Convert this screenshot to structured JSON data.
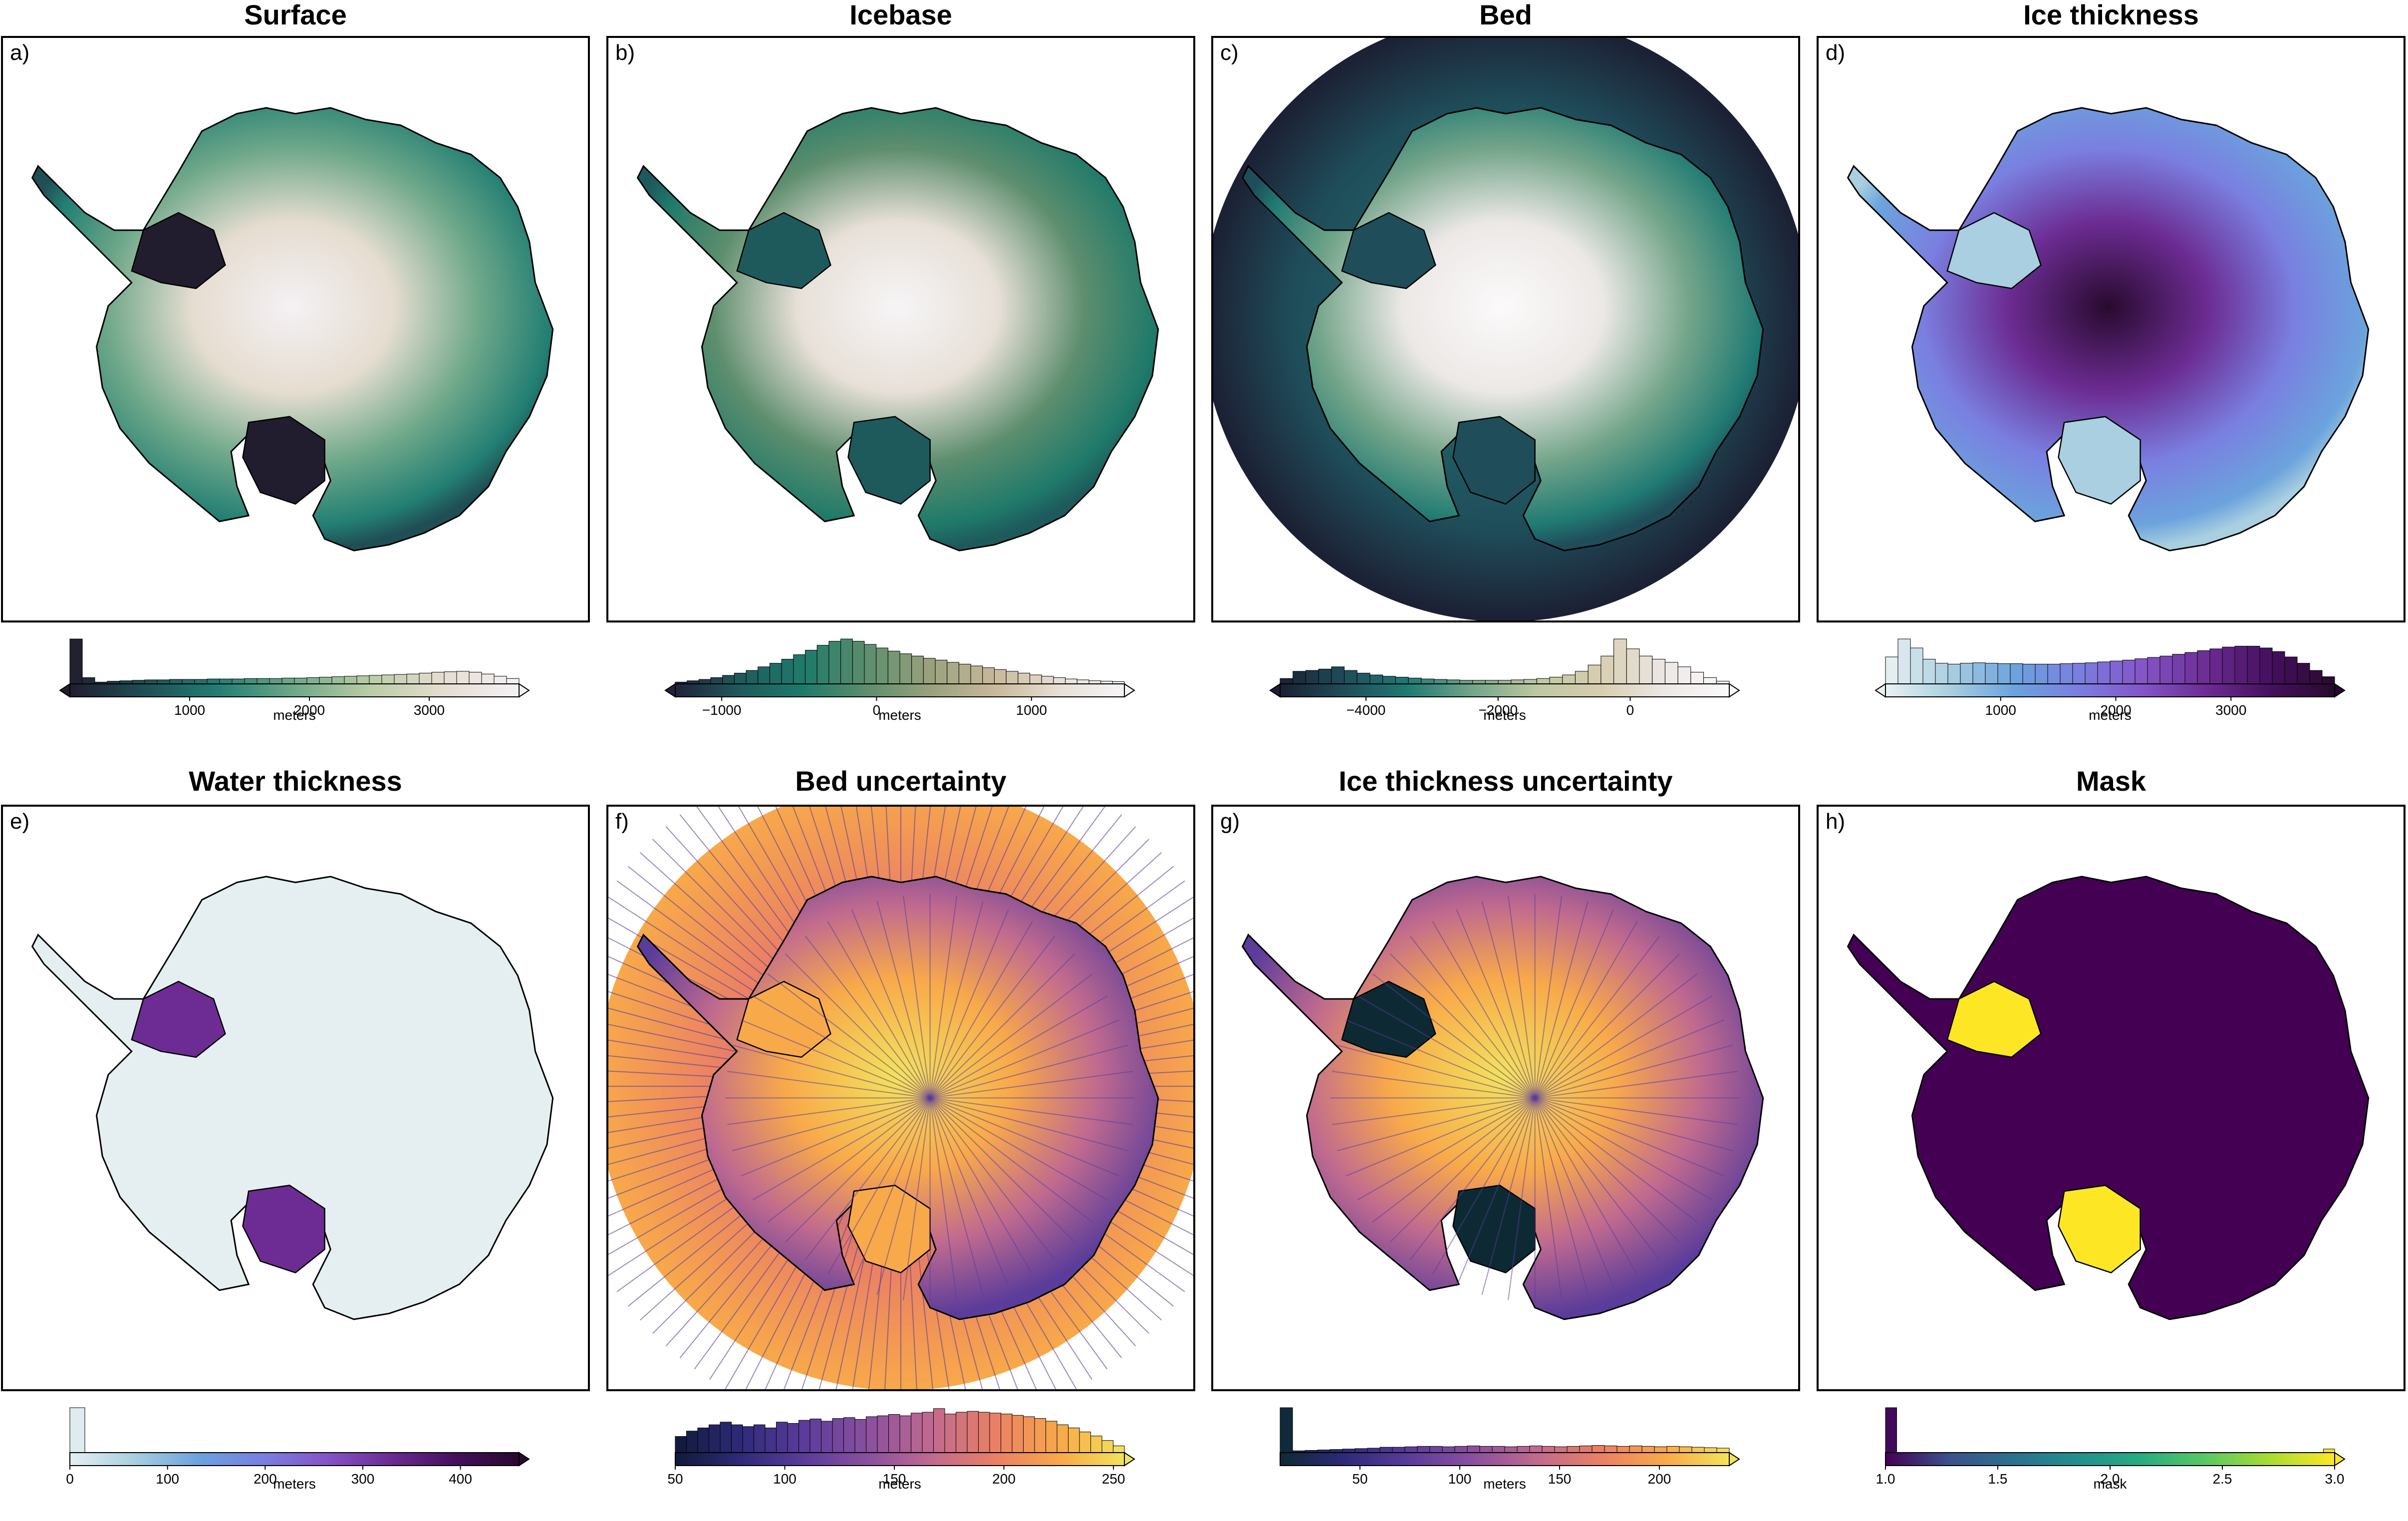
{
  "figure": {
    "panels": [
      {
        "letter": "a)",
        "title": "Surface",
        "shape": "ice",
        "hole": "none",
        "cmap": [
          "#211d2e",
          "#1f4f55",
          "#237f73",
          "#6fa88a",
          "#b8cda4",
          "#e6ddd0",
          "#f4f1f5"
        ],
        "cbar_label": "meters",
        "extend": "both",
        "range": [
          0,
          3750
        ],
        "ticks": [
          1000,
          2000,
          3000
        ],
        "tick_labels": [
          "1000",
          "2000",
          "3000"
        ],
        "histogram": [
          1.0,
          0.14,
          0.04,
          0.06,
          0.07,
          0.08,
          0.09,
          0.09,
          0.1,
          0.1,
          0.1,
          0.11,
          0.11,
          0.11,
          0.12,
          0.12,
          0.12,
          0.13,
          0.13,
          0.14,
          0.15,
          0.16,
          0.17,
          0.18,
          0.19,
          0.2,
          0.21,
          0.22,
          0.24,
          0.26,
          0.27,
          0.28,
          0.26,
          0.22,
          0.17,
          0.12
        ]
      },
      {
        "letter": "b)",
        "title": "Icebase",
        "shape": "ice",
        "hole": "none",
        "cmap": [
          "#22213a",
          "#1e5a5c",
          "#1f7a6a",
          "#5e8e6e",
          "#9aa27d",
          "#c9b99a",
          "#e8e0d8",
          "#f6f5f6"
        ],
        "cbar_label": "meters",
        "extend": "both",
        "range": [
          -1300,
          1600
        ],
        "ticks": [
          -1000,
          0,
          1000
        ],
        "tick_labels": [
          "−1000",
          "0",
          "1000"
        ],
        "histogram": [
          0.04,
          0.07,
          0.1,
          0.14,
          0.19,
          0.24,
          0.3,
          0.38,
          0.46,
          0.55,
          0.65,
          0.75,
          0.86,
          0.95,
          1.0,
          0.95,
          0.88,
          0.8,
          0.73,
          0.67,
          0.62,
          0.57,
          0.53,
          0.48,
          0.44,
          0.4,
          0.36,
          0.32,
          0.28,
          0.24,
          0.2,
          0.17,
          0.14,
          0.11,
          0.09,
          0.07,
          0.06,
          0.05
        ]
      },
      {
        "letter": "c)",
        "title": "Bed",
        "shape": "disk",
        "hole": "none",
        "cmap": [
          "#1c1f33",
          "#1f4d5a",
          "#207a73",
          "#74a58a",
          "#bdc8a0",
          "#d8cdb0",
          "#ece8e6",
          "#fbfafa"
        ],
        "cbar_label": "meters",
        "extend": "both",
        "range": [
          -5300,
          1500
        ],
        "ticks": [
          -4000,
          -2000,
          0
        ],
        "tick_labels": [
          "−4000",
          "−2000",
          "0"
        ],
        "histogram": [
          0.12,
          0.28,
          0.3,
          0.33,
          0.38,
          0.3,
          0.24,
          0.2,
          0.17,
          0.15,
          0.13,
          0.11,
          0.1,
          0.09,
          0.08,
          0.08,
          0.08,
          0.08,
          0.09,
          0.1,
          0.12,
          0.15,
          0.2,
          0.28,
          0.42,
          0.62,
          1.0,
          0.78,
          0.62,
          0.55,
          0.48,
          0.38,
          0.26,
          0.14,
          0.06
        ]
      },
      {
        "letter": "d)",
        "title": "Ice thickness",
        "shape": "ice",
        "hole": "none",
        "cmap": [
          "#eaf1f2",
          "#a9cfe0",
          "#6ba3dd",
          "#7a7fe0",
          "#8455c8",
          "#6c2c93",
          "#45105e",
          "#280a2e"
        ],
        "cbar_label": "meters",
        "extend": "both",
        "range": [
          0,
          3900
        ],
        "ticks": [
          1000,
          2000,
          3000
        ],
        "tick_labels": [
          "1000",
          "2000",
          "3000"
        ],
        "histogram": [
          0.6,
          1.0,
          0.8,
          0.55,
          0.46,
          0.44,
          0.46,
          0.47,
          0.46,
          0.45,
          0.45,
          0.44,
          0.44,
          0.44,
          0.45,
          0.46,
          0.47,
          0.49,
          0.51,
          0.53,
          0.56,
          0.59,
          0.62,
          0.66,
          0.7,
          0.74,
          0.78,
          0.82,
          0.84,
          0.84,
          0.8,
          0.72,
          0.6,
          0.46,
          0.3,
          0.16
        ]
      },
      {
        "letter": "e)",
        "title": "Water thickness",
        "shape": "ice",
        "hole": "none",
        "cmap": [
          "#e5eff1",
          "#a9cfe0",
          "#6ba3dd",
          "#7a7fe0",
          "#8455c8",
          "#6c2c93",
          "#45105e",
          "#280a2e"
        ],
        "cbar_label": "meters",
        "extend": "max",
        "range": [
          0,
          460
        ],
        "ticks": [
          0,
          100,
          200,
          300,
          400
        ],
        "tick_labels": [
          "0",
          "100",
          "200",
          "300",
          "400"
        ],
        "histogram": [
          1.0,
          0.005,
          0.004,
          0.004,
          0.003,
          0.003,
          0.003,
          0.002,
          0.002,
          0.002,
          0.002,
          0.002,
          0.002,
          0.001,
          0.001,
          0.001,
          0.001,
          0.001,
          0.001,
          0.001,
          0.001,
          0.001,
          0.001,
          0.001,
          0.001,
          0.001,
          0.001,
          0.001,
          0.001,
          0.001
        ]
      },
      {
        "letter": "f)",
        "title": "Bed uncertainty",
        "shape": "disk",
        "hole": "none",
        "cmap": [
          "#0f1a3a",
          "#2e2a78",
          "#5a3c9a",
          "#8a4f9f",
          "#c06a8f",
          "#ea8064",
          "#f8a94a",
          "#f3e35a"
        ],
        "cbar_label": "meters",
        "extend": "max",
        "range": [
          50,
          255
        ],
        "ticks": [
          50,
          100,
          150,
          200,
          250
        ],
        "tick_labels": [
          "50",
          "100",
          "150",
          "200",
          "250"
        ],
        "histogram": [
          0.36,
          0.48,
          0.55,
          0.62,
          0.68,
          0.62,
          0.58,
          0.62,
          0.55,
          0.68,
          0.65,
          0.72,
          0.75,
          0.7,
          0.76,
          0.78,
          0.74,
          0.8,
          0.82,
          0.85,
          0.82,
          0.88,
          0.9,
          0.98,
          0.86,
          0.9,
          0.92,
          0.9,
          0.88,
          0.86,
          0.83,
          0.8,
          0.76,
          0.7,
          0.62,
          0.55,
          0.46,
          0.37,
          0.27,
          0.15
        ]
      },
      {
        "letter": "g)",
        "title": "Ice thickness uncertainty",
        "shape": "ice",
        "hole": "none",
        "cmap": [
          "#0d2a34",
          "#2e2a78",
          "#5a3c9a",
          "#8a4f9f",
          "#c06a8f",
          "#ea8064",
          "#f8a94a",
          "#f3e35a"
        ],
        "cbar_label": "meters",
        "extend": "max",
        "range": [
          10,
          235
        ],
        "ticks": [
          50,
          100,
          150,
          200
        ],
        "tick_labels": [
          "50",
          "100",
          "150",
          "200"
        ],
        "histogram": [
          1.0,
          0.04,
          0.05,
          0.06,
          0.07,
          0.08,
          0.09,
          0.1,
          0.12,
          0.12,
          0.13,
          0.14,
          0.14,
          0.13,
          0.14,
          0.15,
          0.14,
          0.14,
          0.13,
          0.14,
          0.15,
          0.14,
          0.13,
          0.14,
          0.15,
          0.16,
          0.15,
          0.14,
          0.15,
          0.14,
          0.13,
          0.14,
          0.13,
          0.12,
          0.11,
          0.1
        ]
      },
      {
        "letter": "h)",
        "title": "Mask",
        "shape": "ice",
        "hole": "none",
        "cmap": [
          "#440154",
          "#3b518b",
          "#2c718e",
          "#21908d",
          "#27ad81",
          "#5cc863",
          "#aadc32",
          "#fde725"
        ],
        "cbar_label": "mask",
        "extend": "max",
        "range": [
          1.0,
          3.0
        ],
        "ticks": [
          1.0,
          1.5,
          2.0,
          2.5,
          3.0
        ],
        "tick_labels": [
          "1.0",
          "1.5",
          "2.0",
          "2.5",
          "3.0"
        ],
        "histogram": [
          1.0,
          0.004,
          0.004,
          0.004,
          0.004,
          0.004,
          0.004,
          0.004,
          0.004,
          0.004,
          0.004,
          0.004,
          0.004,
          0.004,
          0.004,
          0.004,
          0.004,
          0.004,
          0.004,
          0.004,
          0.004,
          0.004,
          0.004,
          0.004,
          0.004,
          0.004,
          0.004,
          0.004,
          0.004,
          0.004,
          0.004,
          0.004,
          0.004,
          0.004,
          0.004,
          0.004,
          0.004,
          0.004,
          0.004,
          0.08
        ]
      }
    ]
  }
}
